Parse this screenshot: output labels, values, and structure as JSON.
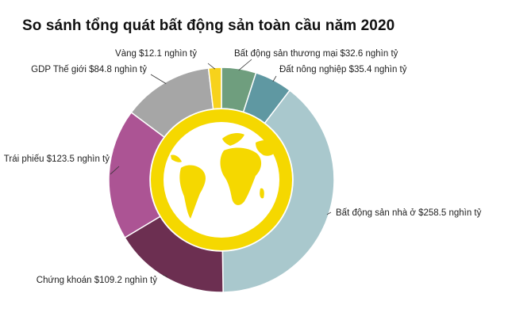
{
  "chart_data": {
    "type": "pie",
    "title": "So sánh tổng quát bất động sản toàn cầu năm 2020",
    "slices": [
      {
        "label": "Bất động sản thương mại $32.6 nghìn tỷ",
        "value": 32.6,
        "color": "#6f9e7e"
      },
      {
        "label": "Đất nông nghiệp $35.4 nghìn tỷ",
        "value": 35.4,
        "color": "#5f98a2"
      },
      {
        "label": "Bất động sản nhà ở $258.5 nghìn tỷ",
        "value": 258.5,
        "color": "#a9c8cd"
      },
      {
        "label": "Chứng khoán $109.2 nghìn tỷ",
        "value": 109.2,
        "color": "#6c2f51"
      },
      {
        "label": "Trái phiếu $123.5 nghìn tỷ",
        "value": 123.5,
        "color": "#ac5494"
      },
      {
        "label": "GDP Thế giới $84.8 nghìn tỷ",
        "value": 84.8,
        "color": "#a6a6a6"
      },
      {
        "label": "Vàng $12.1 nghìn tỷ",
        "value": 12.1,
        "color": "#f7d21c"
      }
    ],
    "center_ring_color": "#f5d800"
  }
}
